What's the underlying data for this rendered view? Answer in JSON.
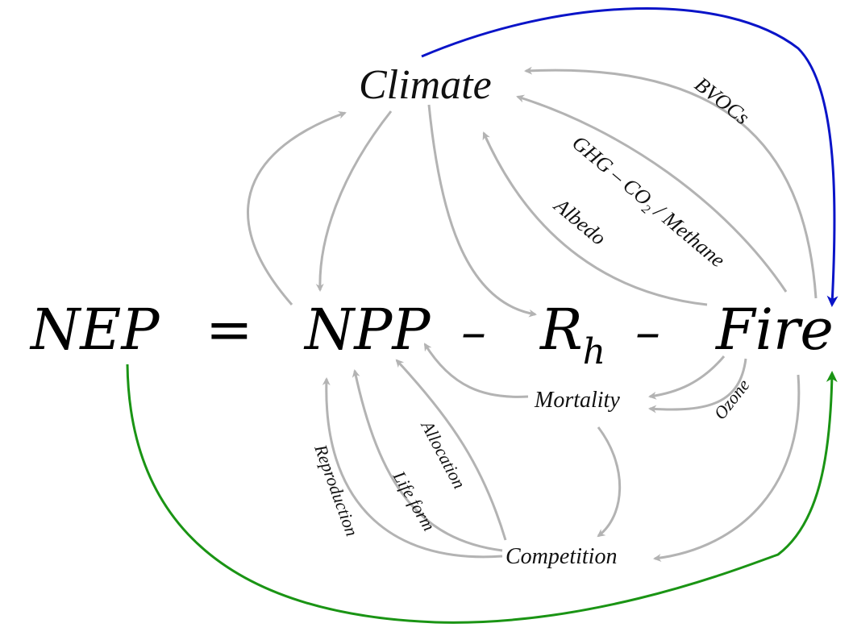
{
  "equation": {
    "lhs": "NEP",
    "equals": "=",
    "npp": "NPP",
    "minus1": "–",
    "rh_main": "R",
    "rh_sub": "h",
    "minus2": "–",
    "fire": "Fire"
  },
  "nodes": {
    "climate": "Climate",
    "mortality": "Mortality",
    "competition": "Competition"
  },
  "edge_labels": {
    "bvocs": "BVOCs",
    "ghg_prefix": "GHG – CO",
    "ghg_sub": "2",
    "ghg_suffix": " / Methane",
    "albedo": "Albedo",
    "ozone": "Ozone",
    "allocation": "Allocation",
    "life_form": "Life form",
    "reproduction": "Reproduction"
  },
  "colors": {
    "feedback_arrows": "#b3b3b3",
    "fire_climate_link": "#0a14c8",
    "nep_fire_link": "#1a9414"
  }
}
